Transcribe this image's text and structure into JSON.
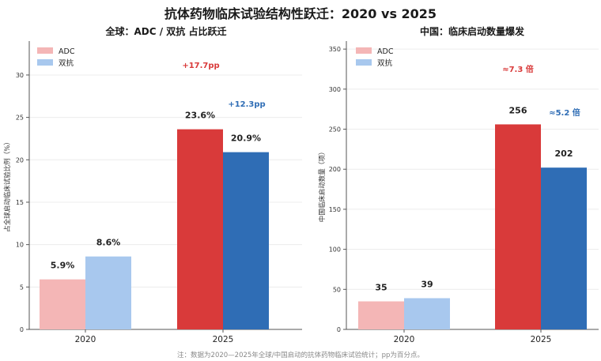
{
  "title": "抗体药物临床试验结构性跃迁：2020 vs 2025",
  "footnote": "注：数据为2020—2025年全球/中国启动的抗体药物临床试验统计；pp为百分点。",
  "colors": {
    "adc_2020": "#f4b6b6",
    "bispecific_2020": "#a8c8ee",
    "adc_2025": "#d93a3a",
    "bispecific_2025": "#2f6db5",
    "annotation_red": "#d93a3a",
    "annotation_blue": "#2f6db5"
  },
  "chart_data": [
    {
      "type": "bar",
      "title": "全球：ADC / 双抗 占比跃迁",
      "ylabel": "占全球启动临床试验比例（%）",
      "xlabel": "",
      "categories": [
        "2020",
        "2025"
      ],
      "ylim": [
        0,
        34
      ],
      "yticks": [
        0,
        5,
        10,
        15,
        20,
        25,
        30
      ],
      "grid": "horizontal",
      "legend": "top-left",
      "series": [
        {
          "name": "ADC",
          "values": [
            5.9,
            23.6
          ],
          "labels": [
            "5.9%",
            "23.6%"
          ]
        },
        {
          "name": "双抗",
          "values": [
            8.6,
            20.9
          ],
          "labels": [
            "8.6%",
            "20.9%"
          ]
        }
      ],
      "annotations": [
        {
          "text": "+17.7pp",
          "series": "ADC"
        },
        {
          "text": "+12.3pp",
          "series": "双抗"
        }
      ]
    },
    {
      "type": "bar",
      "title": "中国：临床启动数量爆发",
      "ylabel": "中国临床启动数量（项）",
      "xlabel": "",
      "categories": [
        "2020",
        "2025"
      ],
      "ylim": [
        0,
        360
      ],
      "yticks": [
        0,
        50,
        100,
        150,
        200,
        250,
        300,
        350
      ],
      "grid": "horizontal",
      "legend": "top-left",
      "series": [
        {
          "name": "ADC",
          "values": [
            35,
            256
          ],
          "labels": [
            "35",
            "256"
          ]
        },
        {
          "name": "双抗",
          "values": [
            39,
            202
          ],
          "labels": [
            "39",
            "202"
          ]
        }
      ],
      "annotations": [
        {
          "text": "≈7.3 倍",
          "series": "ADC"
        },
        {
          "text": "≈5.2 倍",
          "series": "双抗"
        }
      ]
    }
  ]
}
